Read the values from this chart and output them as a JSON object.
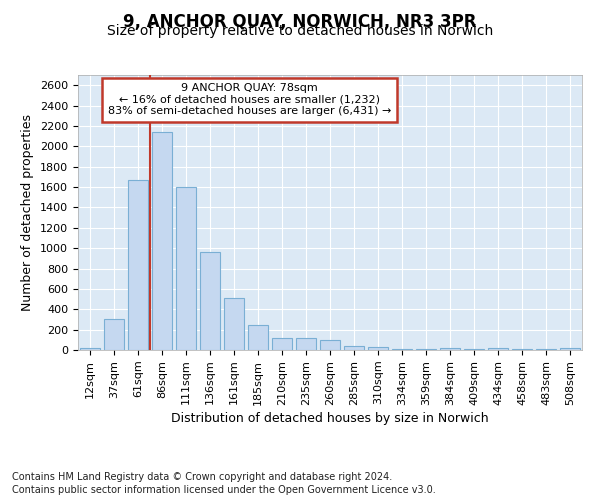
{
  "title": "9, ANCHOR QUAY, NORWICH, NR3 3PR",
  "subtitle": "Size of property relative to detached houses in Norwich",
  "xlabel": "Distribution of detached houses by size in Norwich",
  "ylabel": "Number of detached properties",
  "categories": [
    "12sqm",
    "37sqm",
    "61sqm",
    "86sqm",
    "111sqm",
    "136sqm",
    "161sqm",
    "185sqm",
    "210sqm",
    "235sqm",
    "260sqm",
    "285sqm",
    "310sqm",
    "334sqm",
    "359sqm",
    "384sqm",
    "409sqm",
    "434sqm",
    "458sqm",
    "483sqm",
    "508sqm"
  ],
  "values": [
    20,
    300,
    1670,
    2140,
    1600,
    960,
    510,
    245,
    120,
    115,
    100,
    40,
    30,
    10,
    5,
    20,
    5,
    15,
    5,
    5,
    20
  ],
  "bar_color": "#c5d8f0",
  "bar_edge_color": "#7aafd4",
  "vline_color": "#c0392b",
  "vline_x_index": 3,
  "annotation_text": "9 ANCHOR QUAY: 78sqm\n← 16% of detached houses are smaller (1,232)\n83% of semi-detached houses are larger (6,431) →",
  "annotation_box_color": "#ffffff",
  "annotation_box_edge_color": "#c0392b",
  "ylim": [
    0,
    2700
  ],
  "yticks": [
    0,
    200,
    400,
    600,
    800,
    1000,
    1200,
    1400,
    1600,
    1800,
    2000,
    2200,
    2400,
    2600
  ],
  "background_color": "#dce9f5",
  "footer_line1": "Contains HM Land Registry data © Crown copyright and database right 2024.",
  "footer_line2": "Contains public sector information licensed under the Open Government Licence v3.0.",
  "title_fontsize": 12,
  "subtitle_fontsize": 10,
  "xlabel_fontsize": 9,
  "ylabel_fontsize": 9,
  "tick_fontsize": 8,
  "annotation_fontsize": 8,
  "footer_fontsize": 7
}
